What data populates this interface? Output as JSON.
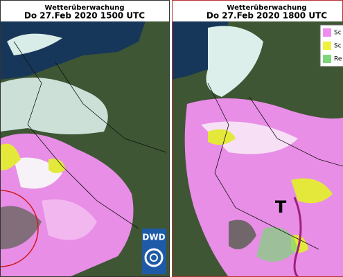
{
  "panels": [
    {
      "title": "Wetterüberwachung",
      "time": "Do 27.Feb 2020 1500 UTC"
    },
    {
      "title": "Wetterüberwachung",
      "time": "Do 27.Feb 2020 1800 UTC"
    }
  ],
  "legend": [
    "Sc",
    "Sc",
    "Re"
  ],
  "logo": "DWD",
  "marker": "T"
}
